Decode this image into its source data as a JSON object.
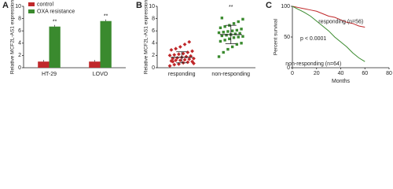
{
  "chart_data": [
    {
      "type": "bar",
      "panel": "A",
      "ylabel": "Relative MCF2L-AS1 expression",
      "categories": [
        "HT-29",
        "LOVO"
      ],
      "series": [
        {
          "name": "control",
          "color": "#c0282a",
          "values": [
            1,
            1
          ]
        },
        {
          "name": "OXA resistance",
          "color": "#3a8a2e",
          "values": [
            6.7,
            7.6
          ]
        }
      ],
      "significance": [
        "**",
        "**"
      ],
      "ylim": [
        0,
        10
      ],
      "yticks": [
        0,
        2,
        4,
        6,
        8,
        10
      ]
    },
    {
      "type": "strip",
      "panel": "B",
      "ylabel": "Relative MCF2L-AS1 expression",
      "categories": [
        "responding",
        "non-responding"
      ],
      "colors": [
        "#c0282a",
        "#3a8a2e"
      ],
      "values": [
        [
          0.3,
          0.5,
          0.6,
          0.8,
          0.9,
          1.0,
          1.1,
          1.2,
          1.2,
          1.3,
          1.4,
          1.5,
          1.5,
          1.6,
          1.7,
          1.8,
          1.9,
          2.0,
          2.1,
          2.2,
          2.3,
          2.5,
          2.7,
          2.9,
          3.1,
          3.4,
          3.8,
          4.2,
          0.7,
          1.0
        ],
        [
          1.8,
          2.5,
          3.0,
          3.4,
          3.8,
          4.0,
          4.3,
          4.5,
          4.7,
          4.9,
          5.0,
          5.1,
          5.2,
          5.3,
          5.4,
          5.5,
          5.6,
          5.7,
          5.8,
          5.9,
          6.0,
          6.1,
          6.3,
          6.5,
          6.7,
          6.9,
          7.2,
          7.5,
          7.9,
          8.1
        ]
      ],
      "means": [
        1.7,
        5.4
      ],
      "errors": [
        0.9,
        1.5
      ],
      "significance": "**",
      "ylim": [
        0,
        10
      ],
      "yticks": [
        0,
        2,
        4,
        6,
        8,
        10
      ]
    },
    {
      "type": "line",
      "panel": "C",
      "ylabel": "Percent survival",
      "xlabel": "Months",
      "x": [
        0,
        5,
        10,
        15,
        20,
        25,
        30,
        35,
        40,
        45,
        50,
        55,
        60
      ],
      "series": [
        {
          "name": "responding (n=56)",
          "color": "#c0282a",
          "values": [
            100,
            98,
            96,
            94,
            92,
            88,
            84,
            82,
            78,
            74,
            72,
            68,
            66
          ]
        },
        {
          "name": "non-responding (n=64)",
          "color": "#3a8a2e",
          "values": [
            100,
            95,
            90,
            84,
            76,
            68,
            60,
            50,
            42,
            34,
            24,
            16,
            10
          ]
        }
      ],
      "annotation": "p < 0.0001",
      "xlim": [
        0,
        80
      ],
      "xticks": [
        0,
        20,
        40,
        60,
        80
      ],
      "ylim": [
        0,
        100
      ],
      "yticks": [
        0,
        50,
        100
      ]
    }
  ]
}
